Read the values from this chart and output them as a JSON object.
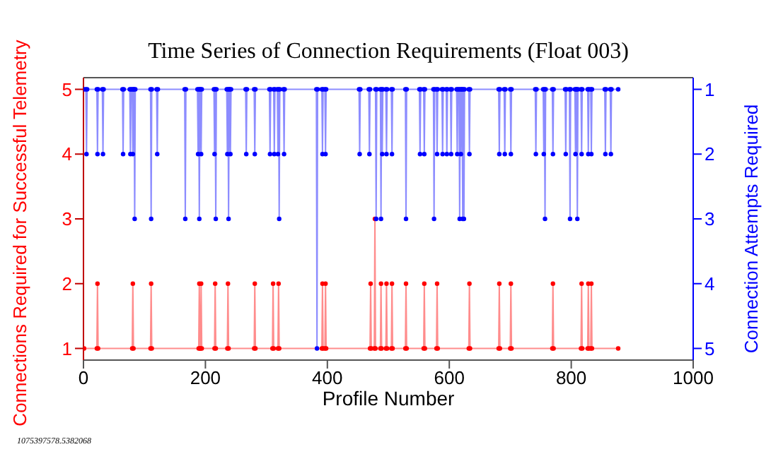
{
  "chart_data": {
    "type": "line",
    "title": "Time Series of Connection Requirements (Float 003)",
    "xlabel": "Profile Number",
    "ylabel": "Connections Required for Successful Telemetry",
    "y2label": "Connection Attempts Required",
    "annotations": [
      "1075397578.5382068"
    ],
    "xlim": [
      0,
      1000
    ],
    "xticks": [
      0,
      200,
      400,
      600,
      800,
      1000
    ],
    "ylim": [
      0.82,
      5.18
    ],
    "yticks": [
      1,
      2,
      3,
      4,
      5
    ],
    "y2lim": [
      5.18,
      0.82
    ],
    "y2ticks": [
      1,
      2,
      3,
      4,
      5
    ],
    "grid": false,
    "legend": false,
    "marker": "circle",
    "line_style": "solid",
    "series": [
      {
        "color": "#ff0000",
        "x": [
          1,
          22,
          23,
          24,
          80,
          81,
          82,
          110,
          111,
          112,
          189,
          190,
          191,
          192,
          193,
          194,
          215,
          216,
          217,
          236,
          237,
          238,
          280,
          281,
          282,
          310,
          311,
          312,
          319,
          320,
          321,
          391,
          392,
          393,
          396,
          397,
          398,
          470,
          471,
          472,
          477,
          478,
          479,
          487,
          488,
          489,
          496,
          497,
          498,
          505,
          506,
          507,
          528,
          529,
          530,
          558,
          559,
          560,
          579,
          580,
          581,
          632,
          633,
          634,
          681,
          682,
          683,
          700,
          701,
          702,
          769,
          770,
          771,
          816,
          817,
          818,
          827,
          828,
          829,
          832,
          833,
          834,
          877
        ],
        "values": [
          1,
          1,
          2,
          1,
          1,
          2,
          1,
          1,
          2,
          1,
          1,
          2,
          1,
          1,
          2,
          1,
          1,
          2,
          1,
          1,
          2,
          1,
          1,
          2,
          1,
          1,
          2,
          1,
          1,
          2,
          1,
          1,
          2,
          1,
          1,
          2,
          1,
          1,
          2,
          1,
          1,
          3,
          1,
          1,
          2,
          1,
          1,
          2,
          1,
          1,
          2,
          1,
          1,
          2,
          1,
          1,
          2,
          1,
          1,
          2,
          1,
          1,
          2,
          1,
          1,
          2,
          1,
          1,
          2,
          1,
          1,
          2,
          1,
          1,
          2,
          1,
          1,
          2,
          1,
          1,
          2,
          1,
          1
        ]
      },
      {
        "color": "#0000ff",
        "axis": "y2",
        "x": [
          1,
          4,
          5,
          6,
          22,
          23,
          24,
          31,
          32,
          33,
          64,
          65,
          66,
          76,
          77,
          78,
          80,
          81,
          82,
          83,
          84,
          85,
          110,
          111,
          112,
          120,
          121,
          122,
          166,
          167,
          168,
          187,
          188,
          189,
          190,
          191,
          192,
          193,
          194,
          214,
          215,
          216,
          217,
          218,
          235,
          236,
          237,
          238,
          239,
          240,
          241,
          242,
          266,
          267,
          268,
          280,
          281,
          282,
          305,
          306,
          307,
          312,
          313,
          314,
          318,
          319,
          320,
          321,
          322,
          328,
          329,
          330,
          382,
          383,
          384,
          391,
          392,
          393,
          396,
          397,
          398,
          452,
          453,
          454,
          468,
          469,
          470,
          479,
          480,
          481,
          487,
          488,
          489,
          490,
          491,
          496,
          497,
          498,
          505,
          506,
          507,
          528,
          529,
          530,
          551,
          552,
          553,
          558,
          559,
          560,
          574,
          575,
          576,
          579,
          580,
          581,
          588,
          589,
          590,
          595,
          596,
          597,
          602,
          603,
          604,
          612,
          613,
          614,
          616,
          617,
          618,
          619,
          620,
          621,
          622,
          623,
          624,
          625,
          632,
          633,
          634,
          681,
          682,
          683,
          690,
          691,
          692,
          700,
          701,
          702,
          741,
          742,
          743,
          754,
          755,
          756,
          757,
          758,
          769,
          770,
          771,
          790,
          791,
          792,
          797,
          798,
          799,
          806,
          807,
          808,
          809,
          810,
          811,
          816,
          817,
          818,
          827,
          828,
          829,
          832,
          833,
          834,
          855,
          856,
          857,
          864,
          865,
          866,
          877
        ],
        "values": [
          1,
          1,
          2,
          1,
          1,
          2,
          1,
          1,
          2,
          1,
          1,
          2,
          1,
          1,
          2,
          1,
          1,
          2,
          1,
          1,
          3,
          1,
          1,
          3,
          1,
          1,
          2,
          1,
          1,
          3,
          1,
          1,
          2,
          1,
          3,
          1,
          1,
          2,
          1,
          1,
          2,
          1,
          3,
          1,
          1,
          2,
          1,
          3,
          1,
          1,
          2,
          1,
          1,
          2,
          1,
          1,
          2,
          1,
          1,
          2,
          1,
          1,
          2,
          1,
          1,
          2,
          1,
          3,
          1,
          1,
          2,
          1,
          1,
          5,
          1,
          1,
          2,
          1,
          1,
          2,
          1,
          1,
          2,
          1,
          1,
          2,
          1,
          1,
          3,
          1,
          1,
          3,
          1,
          2,
          1,
          1,
          2,
          1,
          1,
          2,
          1,
          1,
          3,
          1,
          1,
          2,
          1,
          1,
          2,
          1,
          1,
          3,
          1,
          1,
          2,
          1,
          1,
          2,
          1,
          1,
          2,
          1,
          1,
          2,
          1,
          1,
          2,
          1,
          1,
          3,
          1,
          2,
          1,
          1,
          3,
          1,
          3,
          1,
          1,
          2,
          1,
          1,
          2,
          1,
          1,
          2,
          1,
          1,
          2,
          1,
          1,
          2,
          1,
          1,
          2,
          1,
          3,
          1,
          1,
          2,
          1,
          1,
          2,
          1,
          1,
          3,
          1,
          1,
          2,
          1,
          1,
          3,
          1,
          1,
          2,
          1,
          1,
          2,
          1,
          1,
          2,
          1,
          1,
          2,
          1,
          1,
          2,
          1,
          1
        ]
      }
    ]
  }
}
